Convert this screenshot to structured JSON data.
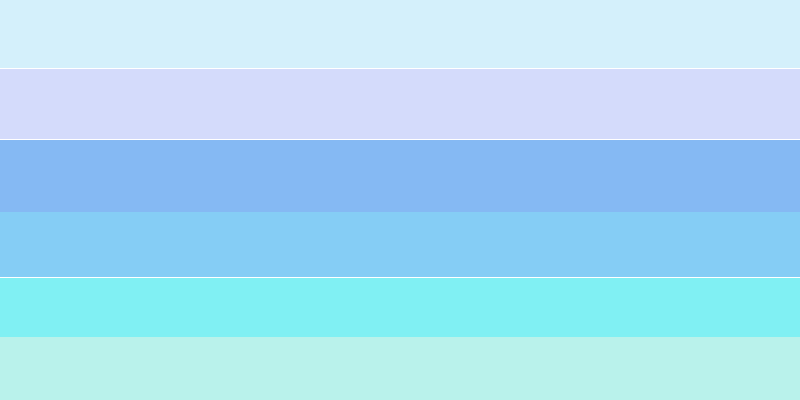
{
  "stripes": [
    {
      "name": "stripe-1",
      "color": "#d4f0fb"
    },
    {
      "name": "stripe-2",
      "color": "#d4dbfb"
    },
    {
      "name": "stripe-3",
      "color": "#85b9f3"
    },
    {
      "name": "stripe-4",
      "color": "#85cdf5"
    },
    {
      "name": "stripe-5",
      "color": "#80f0f3"
    },
    {
      "name": "stripe-6",
      "color": "#b9f2eb"
    }
  ]
}
